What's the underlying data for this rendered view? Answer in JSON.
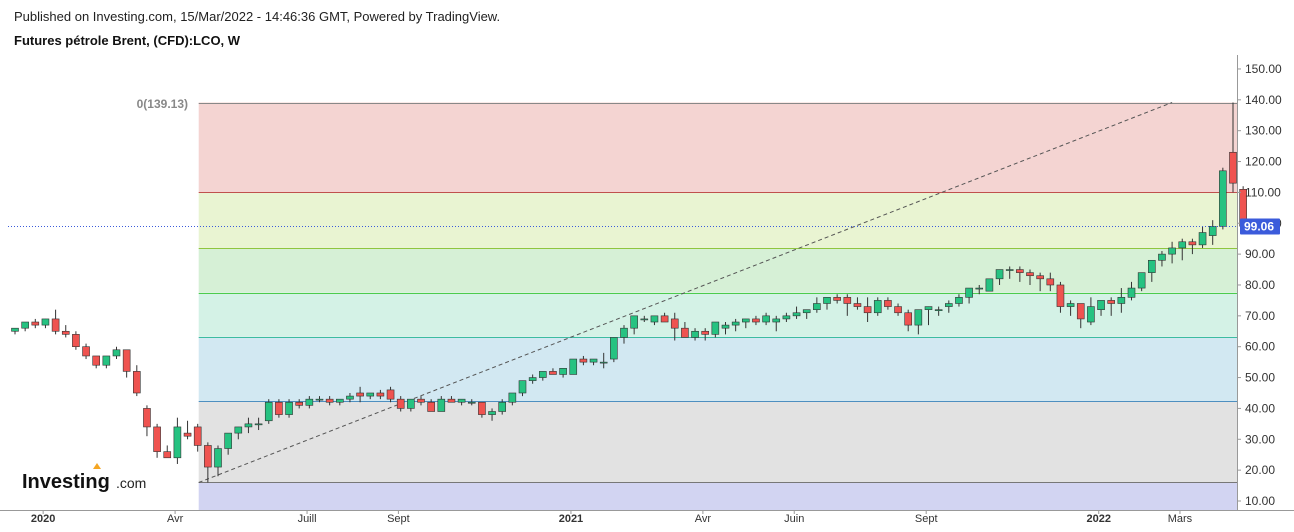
{
  "header": {
    "published": "Published on Investing.com, 15/Mar/2022 - 14:46:36 GMT, Powered by TradingView.",
    "instrument": "Futures pétrole Brent, (CFD):LCO, W"
  },
  "watermark": "Investing.com",
  "colors": {
    "up": "#26c281",
    "down": "#ef5350",
    "price_line": "#3b5bdb",
    "zone_0": "#f4d4d2",
    "zone_1": "#e9f4d2",
    "zone_2": "#d6f0d6",
    "zone_3": "#d4f2e6",
    "zone_4": "#d2e8f2",
    "zone_5": "#e2e2e2",
    "zone_6": "#d2d4f2"
  },
  "chart_data": {
    "type": "candlestick",
    "yaxis": {
      "ticks": [
        "150.00",
        "140.00",
        "130.00",
        "120.00",
        "110.00",
        "100.00",
        "90.00",
        "80.00",
        "70.00",
        "60.00",
        "50.00",
        "40.00",
        "30.00",
        "20.00",
        "10.00"
      ],
      "range": [
        7,
        159
      ]
    },
    "xaxis": {
      "labels": [
        {
          "text": "2020",
          "bold": true,
          "bar": 1
        },
        {
          "text": "Avr",
          "bold": false,
          "bar": 14
        },
        {
          "text": "Juill",
          "bold": false,
          "bar": 27
        },
        {
          "text": "Sept",
          "bold": false,
          "bar": 36
        },
        {
          "text": "2021",
          "bold": true,
          "bar": 53
        },
        {
          "text": "Avr",
          "bold": false,
          "bar": 66
        },
        {
          "text": "Juin",
          "bold": false,
          "bar": 75
        },
        {
          "text": "Sept",
          "bold": false,
          "bar": 88
        },
        {
          "text": "2022",
          "bold": true,
          "bar": 105
        },
        {
          "text": "Mars",
          "bold": false,
          "bar": 113
        }
      ]
    },
    "current_price": {
      "value": 99.06,
      "label": "99.06"
    },
    "fibonacci": {
      "label": "0(139.13)",
      "start_bar": 18,
      "end_bar": 114,
      "levels": [
        139.13,
        110.0,
        92.0,
        77.5,
        63.2,
        42.3,
        16.0
      ],
      "low": 16.0
    },
    "ohlc": [
      [
        65,
        66,
        64,
        66
      ],
      [
        66,
        68,
        65,
        68
      ],
      [
        68,
        69,
        66,
        67
      ],
      [
        67,
        69,
        66,
        69
      ],
      [
        69,
        72,
        64,
        65
      ],
      [
        65,
        67,
        63,
        64
      ],
      [
        64,
        65,
        59,
        60
      ],
      [
        60,
        61,
        56,
        57
      ],
      [
        57,
        57,
        53,
        54
      ],
      [
        54,
        57,
        53,
        57
      ],
      [
        57,
        60,
        56,
        59
      ],
      [
        59,
        59,
        50,
        52
      ],
      [
        52,
        54,
        44,
        45
      ],
      [
        40,
        41,
        31,
        34
      ],
      [
        34,
        35,
        24,
        26
      ],
      [
        26,
        28,
        24,
        24
      ],
      [
        24,
        37,
        22,
        34
      ],
      [
        32,
        36,
        30,
        31
      ],
      [
        34,
        35,
        26,
        28
      ],
      [
        28,
        29,
        16,
        21
      ],
      [
        21,
        28,
        18,
        27
      ],
      [
        27,
        31,
        25,
        32
      ],
      [
        32,
        34,
        30,
        34
      ],
      [
        34,
        37,
        32,
        35
      ],
      [
        35,
        37,
        33,
        35
      ],
      [
        36,
        43,
        35,
        42
      ],
      [
        42,
        43,
        37,
        38
      ],
      [
        38,
        43,
        37,
        42
      ],
      [
        42,
        43,
        40,
        41
      ],
      [
        41,
        44,
        40,
        43
      ],
      [
        43,
        44,
        42,
        43
      ],
      [
        43,
        44,
        41,
        42
      ],
      [
        42,
        43,
        41,
        43
      ],
      [
        43,
        45,
        42,
        44
      ],
      [
        45,
        47,
        42,
        44
      ],
      [
        44,
        45,
        43,
        45
      ],
      [
        45,
        46,
        43,
        44
      ],
      [
        46,
        47,
        42,
        43
      ],
      [
        43,
        44,
        39,
        40
      ],
      [
        40,
        43,
        39,
        43
      ],
      [
        43,
        44,
        41,
        42
      ],
      [
        42,
        43,
        39,
        39
      ],
      [
        39,
        44,
        39,
        43
      ],
      [
        43,
        44,
        42,
        42
      ],
      [
        42,
        43,
        41,
        43
      ],
      [
        42,
        43,
        41,
        42
      ],
      [
        42,
        42,
        37,
        38
      ],
      [
        38,
        40,
        36,
        39
      ],
      [
        39,
        43,
        38,
        42
      ],
      [
        42,
        45,
        41,
        45
      ],
      [
        45,
        49,
        44,
        49
      ],
      [
        49,
        51,
        48,
        50
      ],
      [
        50,
        52,
        49,
        52
      ],
      [
        52,
        53,
        51,
        51
      ],
      [
        51,
        53,
        50,
        53
      ],
      [
        51,
        56,
        51,
        56
      ],
      [
        56,
        57,
        54,
        55
      ],
      [
        55,
        56,
        54,
        56
      ],
      [
        55,
        58,
        53,
        55
      ],
      [
        56,
        63,
        55,
        63
      ],
      [
        63,
        67,
        61,
        66
      ],
      [
        66,
        70,
        64,
        70
      ],
      [
        69,
        70,
        68,
        69
      ],
      [
        68,
        70,
        67,
        70
      ],
      [
        70,
        71,
        68,
        68
      ],
      [
        69,
        71,
        62,
        66
      ],
      [
        66,
        68,
        63,
        63
      ],
      [
        63,
        66,
        62,
        65
      ],
      [
        65,
        66,
        62,
        64
      ],
      [
        64,
        68,
        63,
        68
      ],
      [
        66,
        68,
        64,
        67
      ],
      [
        67,
        69,
        65,
        68
      ],
      [
        68,
        69,
        66,
        69
      ],
      [
        69,
        70,
        67,
        68
      ],
      [
        68,
        71,
        67,
        70
      ],
      [
        68,
        70,
        65,
        69
      ],
      [
        69,
        71,
        68,
        70
      ],
      [
        70,
        73,
        69,
        71
      ],
      [
        71,
        72,
        69,
        72
      ],
      [
        72,
        76,
        71,
        74
      ],
      [
        74,
        76,
        72,
        76
      ],
      [
        76,
        77,
        74,
        75
      ],
      [
        76,
        77,
        70,
        74
      ],
      [
        74,
        76,
        72,
        73
      ],
      [
        73,
        76,
        68,
        71
      ],
      [
        71,
        76,
        70,
        75
      ],
      [
        75,
        76,
        72,
        73
      ],
      [
        73,
        74,
        70,
        71
      ],
      [
        71,
        72,
        65,
        67
      ],
      [
        67,
        71,
        64,
        72
      ],
      [
        72,
        73,
        67,
        73
      ],
      [
        72,
        73,
        70,
        72
      ],
      [
        73,
        75,
        71,
        74
      ],
      [
        74,
        77,
        73,
        76
      ],
      [
        76,
        79,
        74,
        79
      ],
      [
        79,
        80,
        77,
        79
      ],
      [
        78,
        82,
        78,
        82
      ],
      [
        82,
        85,
        80,
        85
      ],
      [
        85,
        86,
        82,
        85
      ],
      [
        85,
        86,
        81,
        84
      ],
      [
        84,
        85,
        80,
        83
      ],
      [
        83,
        84,
        78,
        82
      ],
      [
        82,
        84,
        78,
        80
      ],
      [
        80,
        81,
        71,
        73
      ],
      [
        73,
        75,
        70,
        74
      ],
      [
        74,
        74,
        66,
        69
      ],
      [
        68,
        76,
        67,
        73
      ],
      [
        72,
        75,
        70,
        75
      ],
      [
        75,
        76,
        70,
        74
      ],
      [
        74,
        79,
        71,
        76
      ],
      [
        76,
        81,
        75,
        79
      ],
      [
        79,
        84,
        78,
        84
      ],
      [
        84,
        88,
        81,
        88
      ],
      [
        88,
        91,
        86,
        90
      ],
      [
        90,
        94,
        87,
        92
      ],
      [
        92,
        95,
        88,
        94
      ],
      [
        94,
        95,
        90,
        93
      ],
      [
        93,
        99,
        92,
        97
      ],
      [
        96,
        101,
        93,
        99
      ],
      [
        99,
        118,
        98,
        117
      ],
      [
        123,
        139.13,
        110,
        113
      ],
      [
        111,
        112,
        98,
        99.06
      ]
    ]
  }
}
